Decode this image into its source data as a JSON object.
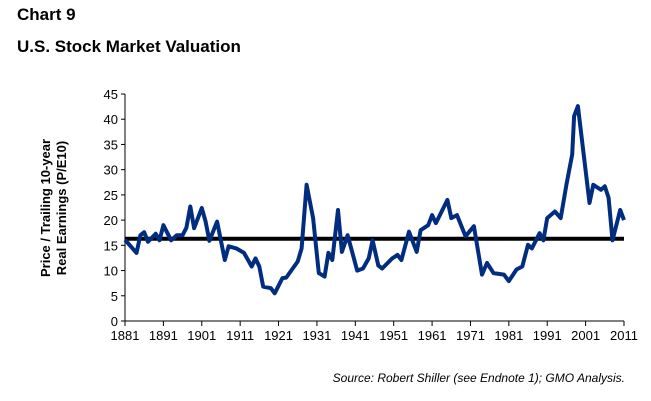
{
  "header": {
    "chart_number": "Chart 9",
    "title": "U.S. Stock Market Valuation"
  },
  "source": "Source: Robert Shiller (see Endnote 1); GMO Analysis.",
  "chart_data": {
    "type": "line",
    "title": "U.S. Stock Market Valuation",
    "ylabel_line1": "Price / Trailing 10-year",
    "ylabel_line2": "Real Earnings (P/E10)",
    "xlabel": "",
    "xlim": [
      1881,
      2011
    ],
    "ylim": [
      0,
      45
    ],
    "yticks": [
      0,
      5,
      10,
      15,
      20,
      25,
      30,
      35,
      40,
      45
    ],
    "xticks": [
      1881,
      1891,
      1901,
      1911,
      1921,
      1931,
      1941,
      1951,
      1961,
      1971,
      1981,
      1991,
      2001,
      2011
    ],
    "grid": false,
    "line_color": "#002d80",
    "reference_line": {
      "value": 16.3,
      "color": "#000000"
    },
    "x": [
      1881,
      1884,
      1885,
      1886,
      1887,
      1889,
      1890,
      1891,
      1893,
      1894.5,
      1896,
      1897,
      1898,
      1899,
      1901,
      1902,
      1903,
      1905,
      1907,
      1908,
      1910,
      1912,
      1914,
      1915,
      1916,
      1917,
      1919,
      1920,
      1922,
      1923,
      1926,
      1927,
      1928.3,
      1930,
      1931.5,
      1933,
      1934,
      1935,
      1936.5,
      1937.5,
      1939,
      1941.5,
      1943,
      1944.5,
      1945.5,
      1947,
      1948,
      1950.6,
      1952,
      1953,
      1955,
      1957,
      1958,
      1960,
      1961,
      1962,
      1965,
      1966,
      1967.5,
      1969.7,
      1971.9,
      1974,
      1975.3,
      1977,
      1979.7,
      1981,
      1983,
      1984.5,
      1986,
      1987,
      1989,
      1990,
      1991,
      1993,
      1994.5,
      1996,
      1997.5,
      1998,
      1999,
      2002,
      2003,
      2005,
      2006,
      2007,
      2008,
      2010,
      2011
    ],
    "y": [
      16.1,
      13.5,
      17,
      17.6,
      15.7,
      17.3,
      16,
      19,
      16,
      17,
      17,
      18.5,
      22.7,
      18.4,
      22.4,
      19.7,
      15.9,
      19.7,
      12.1,
      14.8,
      14.4,
      13.5,
      10.8,
      12.4,
      10.8,
      6.8,
      6.5,
      5.5,
      8.5,
      8.6,
      11.8,
      14.4,
      27,
      20.4,
      9.5,
      8.8,
      13.5,
      12.1,
      22,
      13.7,
      17,
      10,
      10.4,
      12.4,
      16,
      11,
      10.4,
      12.4,
      13.1,
      12.1,
      17.7,
      13.7,
      18,
      19,
      21,
      19.4,
      24,
      20.4,
      21,
      16.8,
      18.8,
      9.2,
      11.5,
      9.5,
      9.2,
      7.9,
      10.2,
      10.8,
      15.1,
      14.4,
      17.4,
      16,
      20.4,
      21.7,
      20.4,
      27,
      33,
      40.6,
      42.6,
      23.4,
      27,
      26,
      26.7,
      24.4,
      16,
      22,
      20
    ]
  }
}
